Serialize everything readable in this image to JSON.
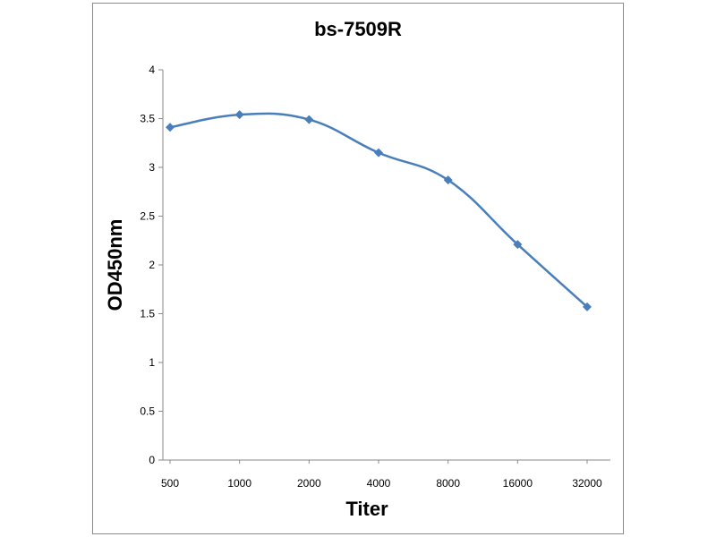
{
  "chart_data": {
    "type": "line",
    "title": "bs-7509R",
    "xlabel": "Titer",
    "ylabel": "OD450nm",
    "categories": [
      "500",
      "1000",
      "2000",
      "4000",
      "8000",
      "16000",
      "32000"
    ],
    "series": [
      {
        "values": [
          3.41,
          3.54,
          3.49,
          3.15,
          2.87,
          2.21,
          1.57
        ]
      }
    ],
    "ylim": [
      0,
      4
    ],
    "yticks": [
      "0",
      "0.5",
      "1",
      "1.5",
      "2",
      "2.5",
      "3",
      "3.5",
      "4"
    ],
    "grid": false,
    "legend": "none",
    "line_color": "#4a7ebb",
    "marker": "diamond"
  }
}
